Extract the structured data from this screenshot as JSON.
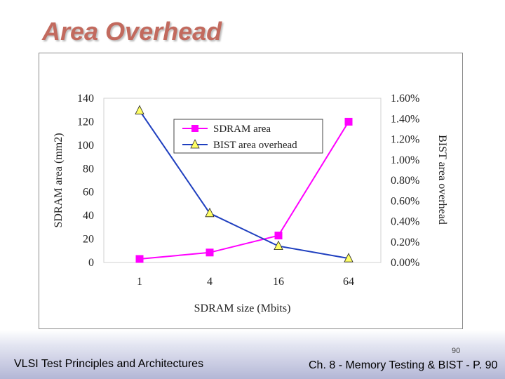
{
  "slide": {
    "title": "Area Overhead",
    "page_number": "90",
    "footer_left": "VLSI Test Principles and Architectures",
    "footer_right": "Ch. 8 - Memory Testing & BIST - P. 90"
  },
  "chart_data": {
    "type": "line",
    "title": "",
    "xlabel": "SDRAM size (Mbits)",
    "ylabel": "SDRAM area (mm2)",
    "y2label": "BIST area overhead",
    "categories": [
      "1",
      "4",
      "16",
      "64"
    ],
    "ylim": [
      0,
      140
    ],
    "y2lim": [
      0,
      1.6
    ],
    "yticks": [
      "0",
      "20",
      "40",
      "60",
      "80",
      "100",
      "120",
      "140"
    ],
    "y2ticks": [
      "0.00%",
      "0.20%",
      "0.40%",
      "0.60%",
      "0.80%",
      "1.00%",
      "1.20%",
      "1.40%",
      "1.60%"
    ],
    "grid": false,
    "legend_position": "top-center",
    "series": [
      {
        "name": "SDRAM area",
        "axis": "left",
        "marker": "square",
        "color": "#ff00ff",
        "values": [
          3,
          8.5,
          23,
          120
        ]
      },
      {
        "name": "BIST area overhead",
        "axis": "right",
        "marker": "triangle",
        "color": "#1f3fbf",
        "values": [
          1.48,
          0.48,
          0.16,
          0.04
        ]
      }
    ]
  }
}
